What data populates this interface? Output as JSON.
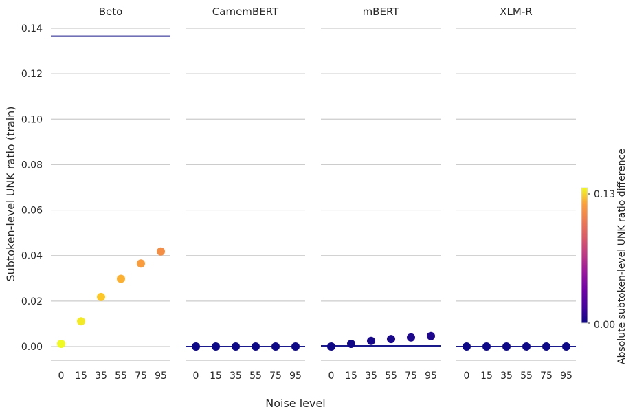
{
  "chart_data": {
    "type": "scatter",
    "ylabel": "Subtoken-level UNK ratio (train)",
    "xlabel": "Noise level",
    "x_categories": [
      "0",
      "15",
      "35",
      "55",
      "75",
      "95"
    ],
    "ylim": [
      -0.0065,
      0.143
    ],
    "yticks": [
      0.0,
      0.02,
      0.04,
      0.06,
      0.08,
      0.1,
      0.12,
      0.14
    ],
    "ytick_labels": [
      "0.00",
      "0.02",
      "0.04",
      "0.06",
      "0.08",
      "0.10",
      "0.12",
      "0.14"
    ],
    "grid": true,
    "panels": [
      {
        "name": "Beto",
        "values": [
          0.0012,
          0.0111,
          0.0218,
          0.0298,
          0.0365,
          0.0418
        ],
        "reference": 0.1365
      },
      {
        "name": "CamemBERT",
        "values": [
          0.0,
          0.0,
          0.0,
          0.0,
          0.0,
          0.0
        ],
        "reference": 0.0
      },
      {
        "name": "mBERT",
        "values": [
          0.0,
          0.0012,
          0.0025,
          0.0033,
          0.004,
          0.0046
        ],
        "reference": 0.0003
      },
      {
        "name": "XLM-R",
        "values": [
          0.0,
          0.0,
          0.0,
          0.0,
          0.0,
          0.0
        ],
        "reference": 0.0
      }
    ],
    "colorbar": {
      "label": "Absolute subtoken-level UNK ratio difference",
      "min": 0.0,
      "max": 0.13,
      "min_label": "0.00",
      "max_label": "0.13",
      "colormap": "plasma"
    },
    "colors": {
      "reference_line": "#1a1a8c",
      "grid": "#cccccc"
    }
  }
}
